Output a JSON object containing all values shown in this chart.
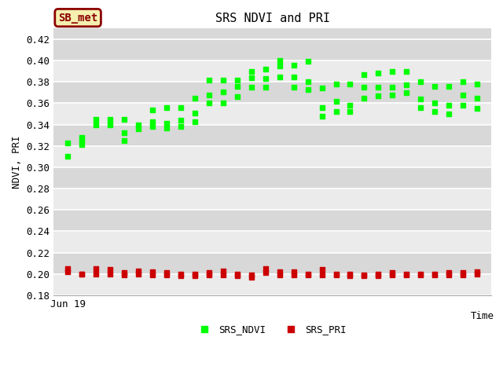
{
  "title": "SRS NDVI and PRI",
  "xlabel": "Time",
  "ylabel": "NDVI, PRI",
  "ylim": [
    0.18,
    0.43
  ],
  "plot_bg_light": "#ebebeb",
  "plot_bg_dark": "#d8d8d8",
  "annotation_text": "SB_met",
  "annotation_bg": "#f5f0b0",
  "annotation_border": "#8B0000",
  "ndvi_color": "#00ff00",
  "pri_color": "#cc0000",
  "ndvi_label": "SRS_NDVI",
  "pri_label": "SRS_PRI",
  "ndvi_x": [
    1,
    1,
    2,
    2,
    2,
    3,
    3,
    4,
    4,
    5,
    5,
    5,
    6,
    6,
    7,
    7,
    7,
    8,
    8,
    8,
    9,
    9,
    9,
    10,
    10,
    10,
    11,
    11,
    11,
    12,
    12,
    12,
    13,
    13,
    13,
    14,
    14,
    14,
    15,
    15,
    15,
    16,
    16,
    16,
    17,
    17,
    17,
    18,
    18,
    18,
    19,
    19,
    19,
    20,
    20,
    20,
    21,
    21,
    21,
    22,
    22,
    22,
    23,
    23,
    23,
    24,
    24,
    24,
    25,
    25,
    25,
    26,
    26,
    26,
    27,
    27,
    27,
    28,
    28,
    28,
    29,
    29,
    29,
    30,
    30,
    30
  ],
  "ndvi_y": [
    0.31,
    0.323,
    0.328,
    0.321,
    0.325,
    0.34,
    0.345,
    0.34,
    0.345,
    0.325,
    0.332,
    0.345,
    0.336,
    0.34,
    0.338,
    0.343,
    0.354,
    0.337,
    0.341,
    0.356,
    0.338,
    0.344,
    0.356,
    0.343,
    0.351,
    0.365,
    0.36,
    0.368,
    0.382,
    0.382,
    0.371,
    0.36,
    0.366,
    0.376,
    0.382,
    0.375,
    0.384,
    0.39,
    0.375,
    0.383,
    0.392,
    0.385,
    0.395,
    0.4,
    0.375,
    0.385,
    0.396,
    0.373,
    0.38,
    0.399,
    0.348,
    0.356,
    0.374,
    0.352,
    0.362,
    0.378,
    0.352,
    0.358,
    0.378,
    0.365,
    0.375,
    0.387,
    0.367,
    0.375,
    0.388,
    0.368,
    0.375,
    0.39,
    0.37,
    0.377,
    0.39,
    0.356,
    0.364,
    0.38,
    0.352,
    0.36,
    0.376,
    0.35,
    0.358,
    0.376,
    0.358,
    0.368,
    0.38,
    0.355,
    0.365,
    0.378
  ],
  "pri_x": [
    1,
    1,
    2,
    2,
    3,
    3,
    4,
    4,
    5,
    5,
    6,
    6,
    7,
    7,
    8,
    8,
    9,
    9,
    10,
    10,
    11,
    11,
    12,
    12,
    13,
    13,
    14,
    14,
    15,
    15,
    16,
    16,
    17,
    17,
    18,
    18,
    19,
    19,
    20,
    20,
    21,
    21,
    22,
    22,
    23,
    23,
    24,
    24,
    25,
    25,
    26,
    26,
    27,
    27,
    28,
    28,
    29,
    29,
    30,
    30
  ],
  "pri_y": [
    0.202,
    0.205,
    0.2,
    0.2,
    0.2,
    0.205,
    0.2,
    0.204,
    0.199,
    0.201,
    0.2,
    0.203,
    0.199,
    0.202,
    0.199,
    0.201,
    0.198,
    0.2,
    0.198,
    0.2,
    0.199,
    0.201,
    0.199,
    0.203,
    0.198,
    0.2,
    0.197,
    0.199,
    0.201,
    0.205,
    0.199,
    0.202,
    0.199,
    0.202,
    0.199,
    0.2,
    0.199,
    0.204,
    0.199,
    0.2,
    0.198,
    0.2,
    0.198,
    0.199,
    0.198,
    0.2,
    0.199,
    0.201,
    0.199,
    0.2,
    0.199,
    0.2,
    0.199,
    0.2,
    0.199,
    0.201,
    0.199,
    0.201,
    0.2,
    0.202
  ],
  "yticks": [
    0.18,
    0.2,
    0.22,
    0.24,
    0.26,
    0.28,
    0.3,
    0.32,
    0.34,
    0.36,
    0.38,
    0.4,
    0.42
  ]
}
